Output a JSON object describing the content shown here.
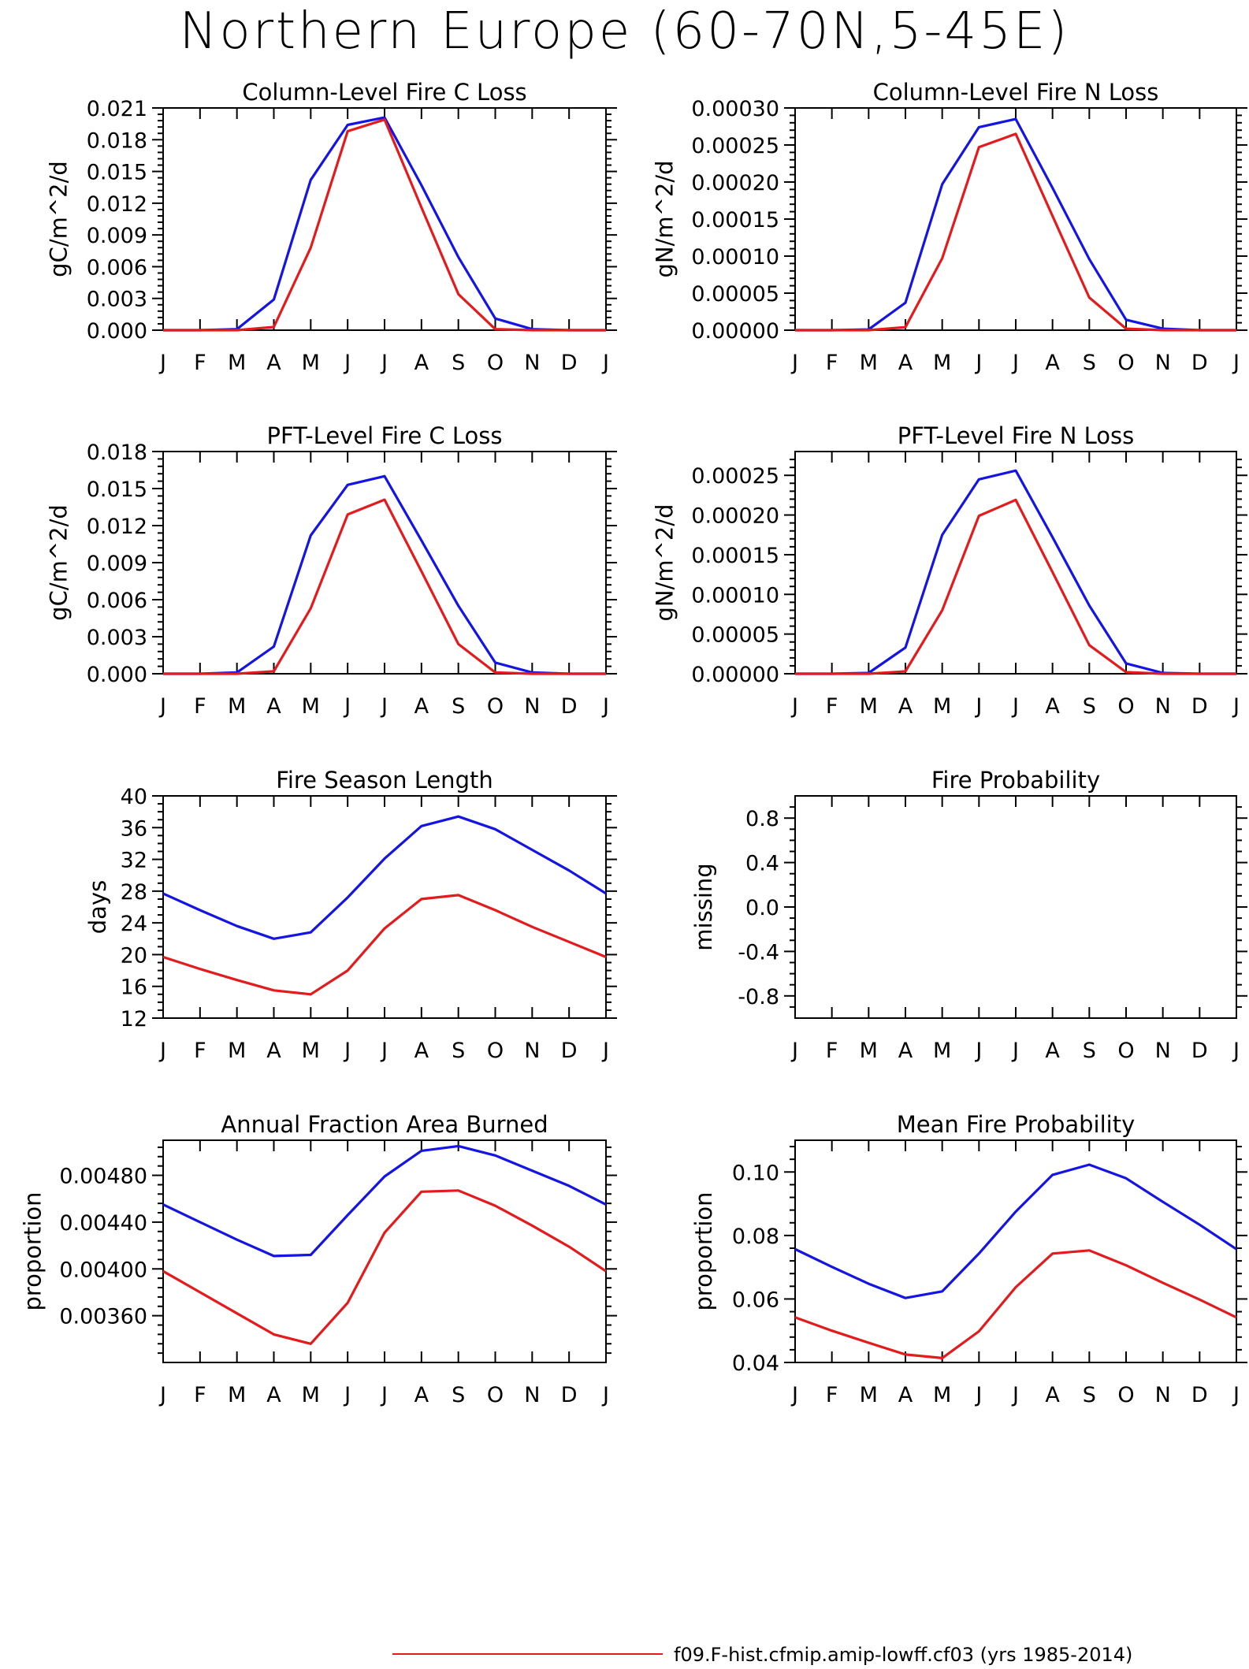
{
  "title": "Northern Europe (60-70N,5-45E)",
  "legend": {
    "entries": [
      {
        "label": "f09.F-hist.cfmip.amip-lowff.cf03 (yrs 1985-2014)",
        "color": "#e41a1c"
      }
    ]
  },
  "chart_data": [
    {
      "type": "line",
      "title": "Column-Level Fire C Loss",
      "ylabel": "gC/m^2/d",
      "xlabel": "",
      "categories": [
        "J",
        "F",
        "M",
        "A",
        "M",
        "J",
        "J",
        "A",
        "S",
        "O",
        "N",
        "D",
        "J"
      ],
      "ylim": [
        0.0,
        0.021
      ],
      "yticks": [
        "0.000",
        "0.003",
        "0.006",
        "0.009",
        "0.012",
        "0.015",
        "0.018",
        "0.021"
      ],
      "yminor": 5,
      "grid": false,
      "series": [
        {
          "color": "#1414e6",
          "values": [
            0,
            0,
            0.0001,
            0.0029,
            0.0142,
            0.0194,
            0.0201,
            0.0137,
            0.0069,
            0.0011,
            0.0001,
            0,
            0
          ]
        },
        {
          "color": "#e41a1c",
          "values": [
            0,
            0,
            0,
            0.0003,
            0.0078,
            0.0188,
            0.0199,
            0.0116,
            0.0034,
            0.0001,
            0,
            0,
            0
          ]
        }
      ]
    },
    {
      "type": "line",
      "title": "Column-Level Fire N Loss",
      "ylabel": "gN/m^2/d",
      "xlabel": "",
      "categories": [
        "J",
        "F",
        "M",
        "A",
        "M",
        "J",
        "J",
        "A",
        "S",
        "O",
        "N",
        "D",
        "J"
      ],
      "ylim": [
        0.0,
        0.0003
      ],
      "yticks": [
        "0.00000",
        "0.00005",
        "0.00010",
        "0.00015",
        "0.00020",
        "0.00025",
        "0.00030"
      ],
      "yminor": 5,
      "grid": false,
      "series": [
        {
          "color": "#1414e6",
          "values": [
            0,
            0,
            1e-06,
            3.7e-05,
            0.000197,
            0.000274,
            0.000285,
            0.000192,
            9.6e-05,
            1.4e-05,
            2e-06,
            0,
            0
          ]
        },
        {
          "color": "#e41a1c",
          "values": [
            0,
            0,
            0,
            4e-06,
            9.7e-05,
            0.000247,
            0.000265,
            0.000154,
            4.4e-05,
            2e-06,
            0,
            0,
            0
          ]
        }
      ]
    },
    {
      "type": "line",
      "title": "PFT-Level Fire C Loss",
      "ylabel": "gC/m^2/d",
      "xlabel": "",
      "categories": [
        "J",
        "F",
        "M",
        "A",
        "M",
        "J",
        "J",
        "A",
        "S",
        "O",
        "N",
        "D",
        "J"
      ],
      "ylim": [
        0.0,
        0.018
      ],
      "yticks": [
        "0.000",
        "0.003",
        "0.006",
        "0.009",
        "0.012",
        "0.015",
        "0.018"
      ],
      "yminor": 5,
      "grid": false,
      "series": [
        {
          "color": "#1414e6",
          "values": [
            0,
            0,
            0.0001,
            0.0022,
            0.0112,
            0.0153,
            0.016,
            0.0108,
            0.0055,
            0.0009,
            0.0001,
            0,
            0
          ]
        },
        {
          "color": "#e41a1c",
          "values": [
            0,
            0,
            0,
            0.0002,
            0.0053,
            0.0129,
            0.0141,
            0.0083,
            0.0024,
            0.0001,
            0,
            0,
            0
          ]
        }
      ]
    },
    {
      "type": "line",
      "title": "PFT-Level Fire N Loss",
      "ylabel": "gN/m^2/d",
      "xlabel": "",
      "categories": [
        "J",
        "F",
        "M",
        "A",
        "M",
        "J",
        "J",
        "A",
        "S",
        "O",
        "N",
        "D",
        "J"
      ],
      "ylim": [
        0.0,
        0.00028
      ],
      "yticks": [
        "0.00000",
        "0.00005",
        "0.00010",
        "0.00015",
        "0.00020",
        "0.00025"
      ],
      "ytickvalues": [
        0,
        5e-05,
        0.0001,
        0.00015,
        0.0002,
        0.00025
      ],
      "yminor": 5,
      "grid": false,
      "series": [
        {
          "color": "#1414e6",
          "values": [
            0,
            0,
            1e-06,
            3.3e-05,
            0.000175,
            0.000245,
            0.000256,
            0.000172,
            8.6e-05,
            1.3e-05,
            1e-06,
            0,
            0
          ]
        },
        {
          "color": "#e41a1c",
          "values": [
            0,
            0,
            0,
            3e-06,
            8e-05,
            0.000199,
            0.000219,
            0.000128,
            3.6e-05,
            2e-06,
            0,
            0,
            0
          ]
        }
      ]
    },
    {
      "type": "line",
      "title": "Fire Season Length",
      "ylabel": "days",
      "xlabel": "",
      "categories": [
        "J",
        "F",
        "M",
        "A",
        "M",
        "J",
        "J",
        "A",
        "S",
        "O",
        "N",
        "D",
        "J"
      ],
      "ylim": [
        12,
        40
      ],
      "yticks": [
        "12",
        "16",
        "20",
        "24",
        "28",
        "32",
        "36",
        "40"
      ],
      "yminor": 4,
      "grid": false,
      "series": [
        {
          "color": "#1414e6",
          "values": [
            27.7,
            25.6,
            23.6,
            22.0,
            22.8,
            27.2,
            32.1,
            36.2,
            37.4,
            35.8,
            33.2,
            30.6,
            27.7
          ]
        },
        {
          "color": "#e41a1c",
          "values": [
            19.7,
            18.2,
            16.8,
            15.5,
            15.0,
            18.0,
            23.3,
            27.0,
            27.5,
            25.6,
            23.5,
            21.6,
            19.7
          ]
        }
      ]
    },
    {
      "type": "line",
      "title": "Fire Probability",
      "ylabel": "missing",
      "xlabel": "",
      "categories": [
        "J",
        "F",
        "M",
        "A",
        "M",
        "J",
        "J",
        "A",
        "S",
        "O",
        "N",
        "D",
        "J"
      ],
      "ylim": [
        -1.0,
        1.0
      ],
      "yticks": [
        "-0.8",
        "-0.4",
        "0.0",
        "0.4",
        "0.8"
      ],
      "ytickvalues": [
        -0.8,
        -0.4,
        0.0,
        0.4,
        0.8
      ],
      "yminor": 4,
      "grid": false,
      "series": []
    },
    {
      "type": "line",
      "title": "Annual Fraction Area Burned",
      "ylabel": "proportion",
      "xlabel": "",
      "categories": [
        "J",
        "F",
        "M",
        "A",
        "M",
        "J",
        "J",
        "A",
        "S",
        "O",
        "N",
        "D",
        "J"
      ],
      "ylim": [
        0.0032,
        0.0051
      ],
      "yticks": [
        "0.00360",
        "0.00400",
        "0.00440",
        "0.00480"
      ],
      "ytickvalues": [
        0.0036,
        0.004,
        0.0044,
        0.0048
      ],
      "yminor": 5,
      "grid": false,
      "series": [
        {
          "color": "#1414e6",
          "values": [
            0.00455,
            0.0044,
            0.00425,
            0.00411,
            0.00412,
            0.00446,
            0.00479,
            0.00501,
            0.00505,
            0.00497,
            0.00484,
            0.00471,
            0.00455
          ]
        },
        {
          "color": "#e41a1c",
          "values": [
            0.00398,
            0.0038,
            0.00362,
            0.00344,
            0.00336,
            0.00371,
            0.00431,
            0.00466,
            0.00467,
            0.00454,
            0.00437,
            0.00419,
            0.00398
          ]
        }
      ]
    },
    {
      "type": "line",
      "title": "Mean Fire Probability",
      "ylabel": "proportion",
      "xlabel": "",
      "categories": [
        "J",
        "F",
        "M",
        "A",
        "M",
        "J",
        "J",
        "A",
        "S",
        "O",
        "N",
        "D",
        "J"
      ],
      "ylim": [
        0.04,
        0.11
      ],
      "yticks": [
        "0.04",
        "0.06",
        "0.08",
        "0.10"
      ],
      "ytickvalues": [
        0.04,
        0.06,
        0.08,
        0.1
      ],
      "yminor": 5,
      "grid": false,
      "series": [
        {
          "color": "#1414e6",
          "values": [
            0.0757,
            0.0701,
            0.0648,
            0.0603,
            0.0624,
            0.0743,
            0.0875,
            0.0991,
            0.1023,
            0.098,
            0.0906,
            0.0834,
            0.0757
          ]
        },
        {
          "color": "#e41a1c",
          "values": [
            0.0542,
            0.05,
            0.0462,
            0.0425,
            0.0414,
            0.0498,
            0.0637,
            0.0743,
            0.0753,
            0.0706,
            0.0651,
            0.0598,
            0.0542
          ]
        }
      ]
    }
  ]
}
